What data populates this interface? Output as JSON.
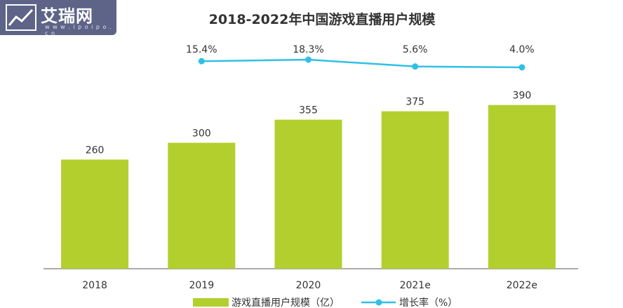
{
  "watermark": {
    "brand": "艾瑞网",
    "site": "w w w . i p o i p o . c n",
    "icon": "line-chart-icon"
  },
  "chart_data": {
    "type": "bar",
    "title": "2018-2022年中国游戏直播用户规模",
    "categories": [
      "2018",
      "2019",
      "2020",
      "2021e",
      "2022e"
    ],
    "series": [
      {
        "name": "游戏直播用户规模（亿）",
        "type": "bar",
        "values": [
          260,
          300,
          355,
          375,
          390
        ],
        "color": "#b2cf2e"
      },
      {
        "name": "增长率（%）",
        "type": "line",
        "values": [
          null,
          15.4,
          18.3,
          5.6,
          4.0
        ],
        "labels": [
          "",
          "15.4%",
          "18.3%",
          "5.6%",
          "4.0%"
        ],
        "color": "#2fc0e6"
      }
    ],
    "ylim": [
      0,
      480
    ],
    "grid": false,
    "legend": "bottom"
  }
}
